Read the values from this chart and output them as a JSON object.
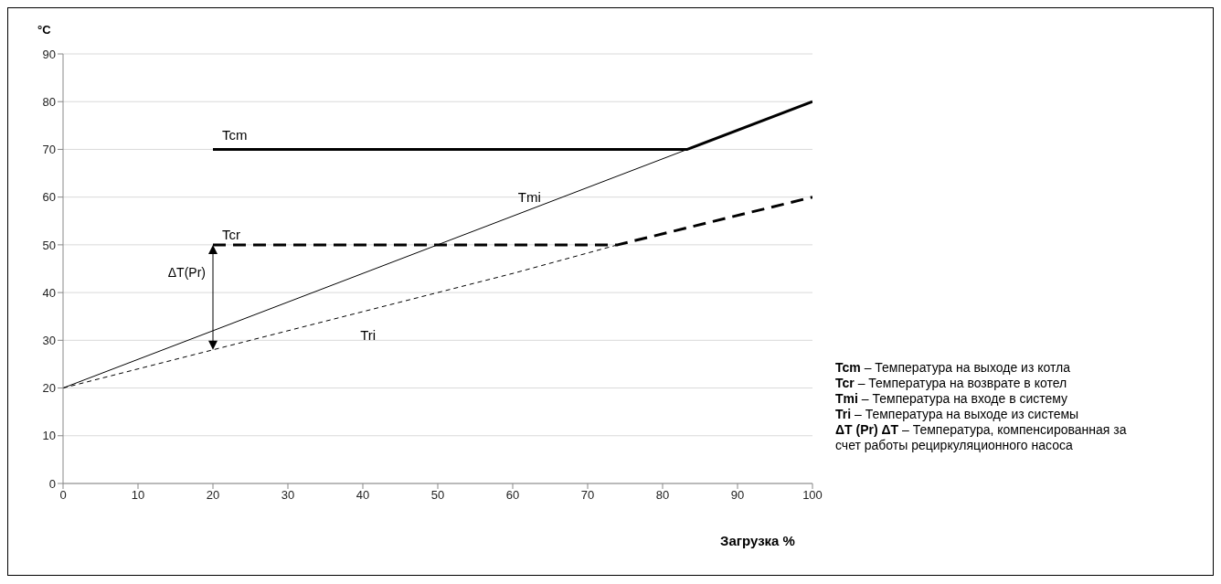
{
  "chart_data": {
    "type": "line",
    "xlabel": "Загрузка %",
    "ylabel": "°C",
    "xlim": [
      0,
      100
    ],
    "xticks": [
      0,
      10,
      20,
      30,
      40,
      50,
      60,
      70,
      80,
      90,
      100
    ],
    "ylim": [
      0,
      90
    ],
    "yticks": [
      0,
      10,
      20,
      30,
      40,
      50,
      60,
      70,
      80,
      90
    ],
    "grid": "y",
    "marker": "none",
    "series": [
      {
        "name": "Tcm",
        "color": "#000000",
        "line_style": "solid",
        "x": [
          20,
          83.3,
          100
        ],
        "values": [
          70,
          70,
          80
        ]
      },
      {
        "name": "Tmi",
        "color": "#000000",
        "line_style": "solid",
        "x": [
          0,
          83.3
        ],
        "values": [
          20,
          70
        ]
      },
      {
        "name": "Tcr",
        "color": "#000000",
        "line_style": "dashed",
        "x": [
          20,
          74,
          100
        ],
        "values": [
          50,
          50,
          60
        ]
      },
      {
        "name": "Tri",
        "color": "#000000",
        "line_style": "dashed",
        "x": [
          0,
          20,
          40,
          60,
          74
        ],
        "values": [
          20,
          28,
          36,
          44,
          50
        ]
      }
    ],
    "annotations": [
      "ΔT(Pr)",
      "Tcm – Температура на выходе из котла",
      "Tcr – Температура на возврате в котел",
      "Tmi – Температура на входе в систему",
      "Tri – Температура на выходе из системы",
      "ΔT (Pr) ΔT – Температура, компенсированная за счет работы рециркуляционного насоса"
    ]
  }
}
